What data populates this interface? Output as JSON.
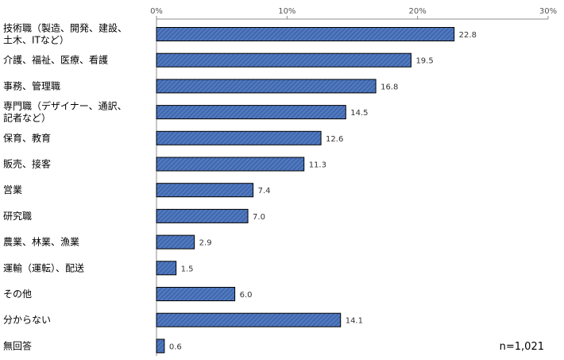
{
  "chart_data": {
    "type": "bar",
    "orientation": "horizontal",
    "title": "",
    "xlabel": "",
    "ylabel": "",
    "xlim": [
      0,
      30
    ],
    "x_ticks": [
      "0%",
      "10%",
      "20%",
      "30%"
    ],
    "x_axis_position": "top",
    "grid": false,
    "legend": "none",
    "bar_color": "#4472C4",
    "bar_pattern": "diagonal-hatch",
    "categories": [
      [
        "技術職（製造、開発、建設、",
        "土木、ITなど）"
      ],
      [
        "介護、福祉、医療、看護"
      ],
      [
        "事務、管理職"
      ],
      [
        "専門職（デザイナー、通訳、",
        "記者など）"
      ],
      [
        "保育、教育"
      ],
      [
        "販売、接客"
      ],
      [
        "営業"
      ],
      [
        "研究職"
      ],
      [
        "農業、林業、漁業"
      ],
      [
        "運輸（運転）、配送"
      ],
      [
        "その他"
      ],
      [
        "分からない"
      ],
      [
        "無回答"
      ]
    ],
    "values": [
      22.8,
      19.5,
      16.8,
      14.5,
      12.6,
      11.3,
      7.4,
      7.0,
      2.9,
      1.5,
      6.0,
      14.1,
      0.6
    ],
    "data_labels": [
      "22.8",
      "19.5",
      "16.8",
      "14.5",
      "12.6",
      "11.3",
      "7.4",
      "7.0",
      "2.9",
      "1.5",
      "6.0",
      "14.1",
      "0.6"
    ]
  },
  "note": "n=1,021"
}
